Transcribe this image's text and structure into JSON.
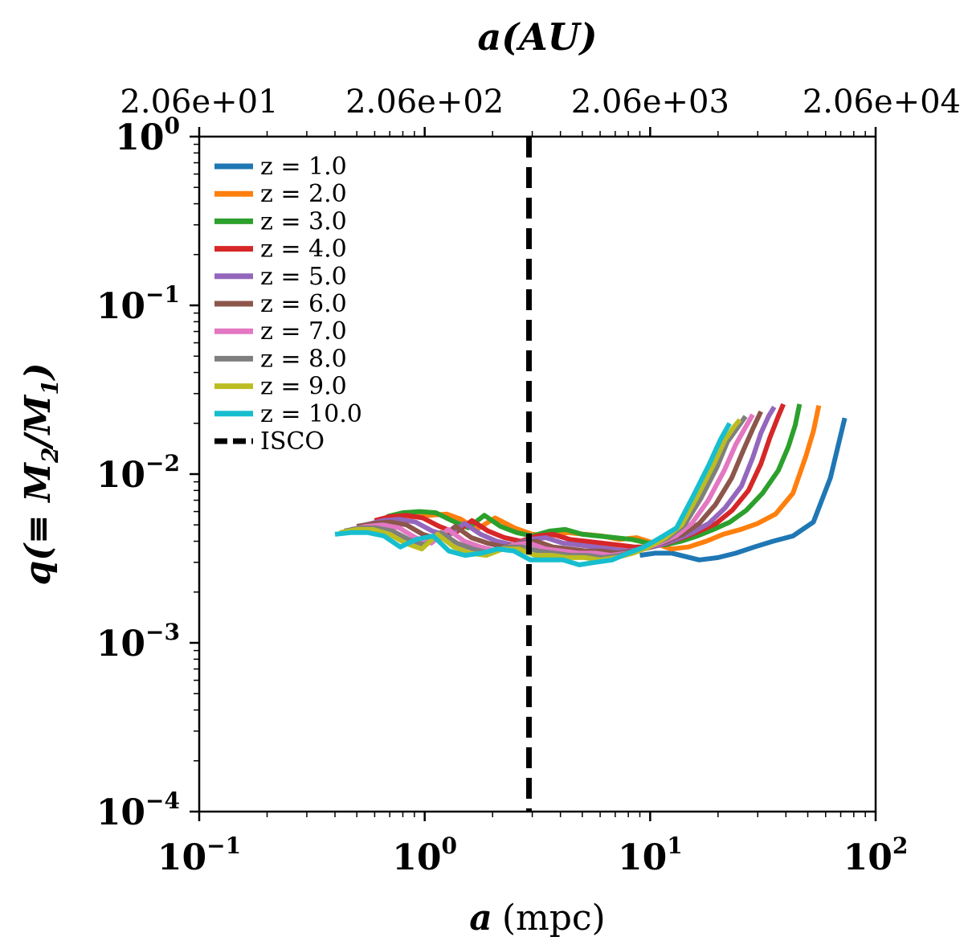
{
  "chart_data": {
    "type": "line",
    "xlabel": {
      "var": "a",
      "unit": "(mpc)"
    },
    "ylabel": {
      "prefix": "q(≡ ",
      "m2": "M",
      "m2sub": "2",
      "slash": "/",
      "m1": "M",
      "m1sub": "1",
      "suffix": ")"
    },
    "top_xlabel": "a(AU)",
    "xscale": "log",
    "yscale": "log",
    "xlim": [
      0.1,
      100
    ],
    "ylim": [
      0.0001,
      1
    ],
    "x_ticks": [
      {
        "value": 0.1,
        "base": "10",
        "exp": "−1"
      },
      {
        "value": 1,
        "base": "10",
        "exp": "0"
      },
      {
        "value": 10,
        "base": "10",
        "exp": "1"
      },
      {
        "value": 100,
        "base": "10",
        "exp": "2"
      }
    ],
    "y_ticks": [
      {
        "value": 0.0001,
        "base": "10",
        "exp": "−4"
      },
      {
        "value": 0.001,
        "base": "10",
        "exp": "−3"
      },
      {
        "value": 0.01,
        "base": "10",
        "exp": "−2"
      },
      {
        "value": 0.1,
        "base": "10",
        "exp": "−1"
      },
      {
        "value": 1,
        "base": "10",
        "exp": "0"
      }
    ],
    "top_ticks": [
      {
        "value": 0.1,
        "label": "2.06e+01"
      },
      {
        "value": 1,
        "label": "2.06e+02"
      },
      {
        "value": 10,
        "label": "2.06e+03"
      },
      {
        "value": 100,
        "label": "2.06e+04"
      }
    ],
    "isco": {
      "label": "ISCO",
      "x": 2.9,
      "color": "#000000"
    },
    "grid": false,
    "legend_position": "upper-left",
    "series": [
      {
        "name": "z = 1.0",
        "color": "#1f77b4",
        "x": [
          9.0,
          10.5,
          12.5,
          15.0,
          16.5,
          20.0,
          24.0,
          29.0,
          35.0,
          43.0,
          53.0,
          63.0,
          73.0
        ],
        "y": [
          0.0033,
          0.0034,
          0.0034,
          0.0032,
          0.0031,
          0.0032,
          0.0034,
          0.0037,
          0.004,
          0.0043,
          0.0052,
          0.0095,
          0.0215
        ]
      },
      {
        "name": "z = 2.0",
        "color": "#ff7f0e",
        "x": [
          0.75,
          0.9,
          1.05,
          1.25,
          1.45,
          1.7,
          2.05,
          2.5,
          3.0,
          3.6,
          4.3,
          5.1,
          6.1,
          7.3,
          8.7,
          10.4,
          12.4,
          14.8,
          17.7,
          21.1,
          25.2,
          30.0,
          36.0,
          43.0,
          49.0,
          53.0,
          56.0
        ],
        "y": [
          0.0055,
          0.0056,
          0.0057,
          0.0058,
          0.0054,
          0.0047,
          0.0055,
          0.0048,
          0.0044,
          0.0043,
          0.0045,
          0.0044,
          0.0043,
          0.0041,
          0.0042,
          0.0039,
          0.0036,
          0.0037,
          0.004,
          0.0044,
          0.0047,
          0.0051,
          0.0058,
          0.0077,
          0.0127,
          0.018,
          0.0255
        ]
      },
      {
        "name": "z = 3.0",
        "color": "#2ca02c",
        "x": [
          0.68,
          0.8,
          0.95,
          1.12,
          1.32,
          1.56,
          1.84,
          2.17,
          2.56,
          3.0,
          3.6,
          4.2,
          5.0,
          5.9,
          7.0,
          8.3,
          9.8,
          11.6,
          13.7,
          16.2,
          19.1,
          22.6,
          26.7,
          31.5,
          37.0,
          41.0,
          44.0,
          46.0
        ],
        "y": [
          0.0056,
          0.0059,
          0.006,
          0.0059,
          0.0053,
          0.0048,
          0.0057,
          0.0049,
          0.0045,
          0.0043,
          0.0046,
          0.0047,
          0.0044,
          0.0043,
          0.0042,
          0.0041,
          0.0039,
          0.0038,
          0.004,
          0.0043,
          0.0047,
          0.0052,
          0.0061,
          0.0077,
          0.0105,
          0.0145,
          0.0195,
          0.026
        ]
      },
      {
        "name": "z = 4.0",
        "color": "#d62728",
        "x": [
          0.6,
          0.7,
          0.83,
          0.98,
          1.16,
          1.37,
          1.62,
          1.91,
          2.26,
          2.67,
          3.15,
          3.7,
          4.4,
          5.2,
          6.1,
          7.2,
          8.5,
          10.1,
          11.9,
          14.0,
          16.6,
          19.6,
          23.1,
          27.3,
          31.0,
          34.0,
          37.0,
          39.0
        ],
        "y": [
          0.0053,
          0.0056,
          0.0057,
          0.0055,
          0.0049,
          0.0045,
          0.0053,
          0.0046,
          0.0042,
          0.004,
          0.0043,
          0.0044,
          0.0041,
          0.004,
          0.0039,
          0.0038,
          0.0037,
          0.0037,
          0.0039,
          0.0042,
          0.0046,
          0.0051,
          0.0061,
          0.008,
          0.0115,
          0.0165,
          0.022,
          0.026
        ]
      },
      {
        "name": "z = 5.0",
        "color": "#9467bd",
        "x": [
          0.55,
          0.65,
          0.77,
          0.91,
          1.08,
          1.27,
          1.5,
          1.77,
          2.09,
          2.47,
          2.92,
          3.45,
          4.1,
          4.8,
          5.7,
          6.7,
          7.9,
          9.4,
          11.1,
          13.1,
          15.4,
          18.2,
          21.5,
          25.4,
          28.5,
          31.0,
          33.5,
          35.5
        ],
        "y": [
          0.005,
          0.0053,
          0.0054,
          0.0052,
          0.0046,
          0.0043,
          0.0051,
          0.0044,
          0.004,
          0.0038,
          0.0041,
          0.0042,
          0.0039,
          0.0038,
          0.0037,
          0.0036,
          0.0035,
          0.0036,
          0.0038,
          0.0041,
          0.0045,
          0.0051,
          0.0063,
          0.0085,
          0.0125,
          0.0175,
          0.022,
          0.025
        ]
      },
      {
        "name": "z = 6.0",
        "color": "#8c564b",
        "x": [
          0.5,
          0.59,
          0.7,
          0.83,
          0.98,
          1.16,
          1.37,
          1.61,
          1.9,
          2.25,
          2.65,
          3.13,
          3.7,
          4.4,
          5.2,
          6.1,
          7.2,
          8.5,
          10.0,
          11.8,
          14.0,
          16.5,
          19.5,
          23.0,
          26.0,
          28.5,
          31.0
        ],
        "y": [
          0.0049,
          0.0051,
          0.0052,
          0.005,
          0.0044,
          0.0041,
          0.0049,
          0.0042,
          0.0039,
          0.0037,
          0.0039,
          0.004,
          0.0037,
          0.0036,
          0.0035,
          0.0035,
          0.0034,
          0.0035,
          0.0037,
          0.004,
          0.0044,
          0.0051,
          0.0066,
          0.0095,
          0.014,
          0.0185,
          0.0235
        ]
      },
      {
        "name": "z = 7.0",
        "color": "#e377c2",
        "x": [
          0.47,
          0.55,
          0.65,
          0.77,
          0.91,
          1.07,
          1.27,
          1.5,
          1.77,
          2.09,
          2.47,
          2.91,
          3.44,
          4.06,
          4.8,
          5.7,
          6.7,
          7.9,
          9.3,
          11.0,
          13.0,
          15.3,
          18.1,
          21.3,
          24.0,
          26.5,
          28.5
        ],
        "y": [
          0.0047,
          0.0049,
          0.005,
          0.0048,
          0.0042,
          0.0039,
          0.0047,
          0.004,
          0.0037,
          0.0035,
          0.0038,
          0.0039,
          0.0036,
          0.0035,
          0.0034,
          0.0034,
          0.0033,
          0.0034,
          0.0036,
          0.0039,
          0.0043,
          0.0051,
          0.007,
          0.0105,
          0.015,
          0.019,
          0.0225
        ]
      },
      {
        "name": "z = 8.0",
        "color": "#7f7f7f",
        "x": [
          0.44,
          0.52,
          0.61,
          0.72,
          0.85,
          1.0,
          1.18,
          1.39,
          1.64,
          1.94,
          2.29,
          2.7,
          3.19,
          3.77,
          4.45,
          5.25,
          6.2,
          7.3,
          8.6,
          10.2,
          12.0,
          14.2,
          16.8,
          19.8,
          22.0,
          24.5,
          26.5
        ],
        "y": [
          0.0046,
          0.0048,
          0.0048,
          0.0046,
          0.0041,
          0.0038,
          0.0045,
          0.0039,
          0.0036,
          0.0034,
          0.0037,
          0.0037,
          0.0035,
          0.0034,
          0.0033,
          0.0033,
          0.0032,
          0.0033,
          0.0035,
          0.0038,
          0.0042,
          0.005,
          0.0072,
          0.011,
          0.0155,
          0.019,
          0.022
        ]
      },
      {
        "name": "z = 9.0",
        "color": "#bcbd22",
        "x": [
          0.42,
          0.5,
          0.59,
          0.7,
          0.82,
          0.97,
          1.14,
          1.35,
          1.59,
          1.88,
          2.22,
          2.62,
          3.09,
          3.65,
          4.3,
          5.1,
          6.0,
          7.1,
          8.4,
          9.9,
          11.7,
          13.8,
          16.3,
          19.2,
          21.5,
          23.5,
          25.0
        ],
        "y": [
          0.0045,
          0.0047,
          0.0047,
          0.0044,
          0.0039,
          0.0036,
          0.0044,
          0.0037,
          0.0034,
          0.0033,
          0.0036,
          0.0036,
          0.0033,
          0.0033,
          0.0032,
          0.0032,
          0.0031,
          0.0032,
          0.0034,
          0.0037,
          0.0042,
          0.005,
          0.0075,
          0.0115,
          0.016,
          0.019,
          0.021
        ]
      },
      {
        "name": "z = 10.0",
        "color": "#17becf",
        "x": [
          0.4,
          0.47,
          0.56,
          0.66,
          0.78,
          0.92,
          1.09,
          1.28,
          1.51,
          1.79,
          2.11,
          2.49,
          2.94,
          3.47,
          4.1,
          4.85,
          5.7,
          6.8,
          8.0,
          9.4,
          11.1,
          13.1,
          15.5,
          18.3,
          20.5,
          22.5
        ],
        "y": [
          0.0044,
          0.0045,
          0.0045,
          0.0043,
          0.0037,
          0.0041,
          0.0043,
          0.0035,
          0.0033,
          0.0034,
          0.0036,
          0.0035,
          0.0031,
          0.0031,
          0.0031,
          0.0029,
          0.003,
          0.0031,
          0.0034,
          0.0037,
          0.0042,
          0.0048,
          0.0074,
          0.0115,
          0.016,
          0.02
        ]
      }
    ]
  }
}
